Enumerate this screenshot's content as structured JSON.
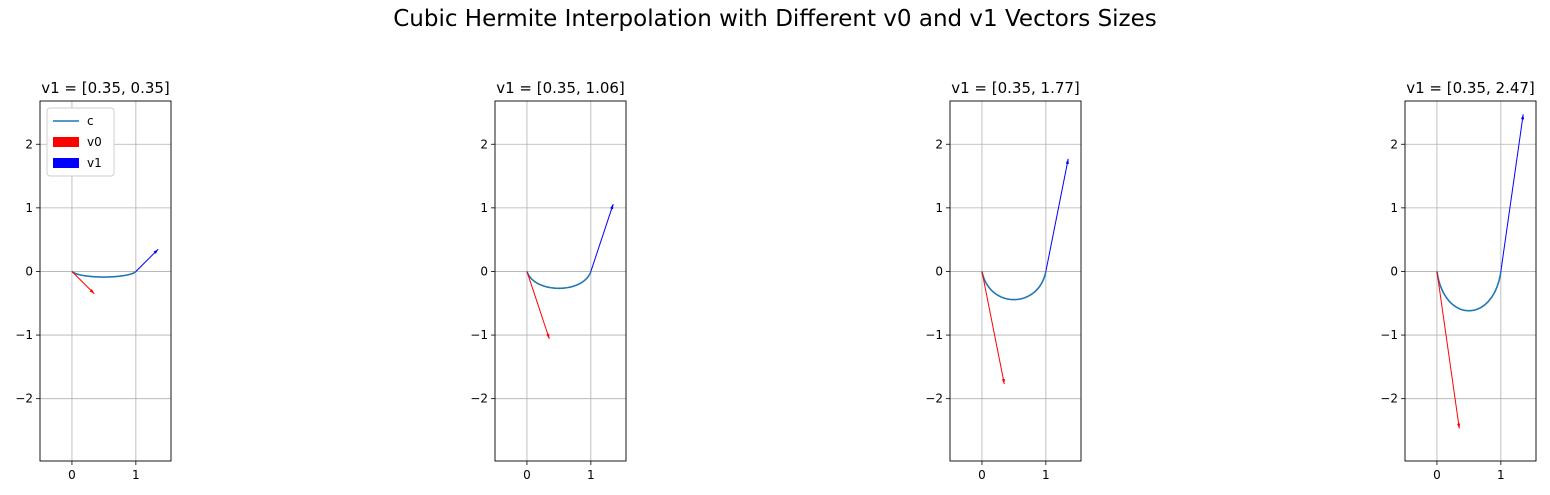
{
  "figure_title": "Cubic Hermite Interpolation with Different v0 and v1 Vectors Sizes",
  "colors": {
    "curve": "#1f77b4",
    "v0": "#ff0000",
    "v1": "#0000ff",
    "grid": "#b0b0b0",
    "axes": "#000000"
  },
  "legend": {
    "placement": "upper-left",
    "entries": [
      {
        "label": "c",
        "style": "line",
        "color": "#1f77b4"
      },
      {
        "label": "v0",
        "style": "patch",
        "color": "#ff0000"
      },
      {
        "label": "v1",
        "style": "patch",
        "color": "#0000ff"
      }
    ]
  },
  "chart_data": [
    {
      "type": "line",
      "title": "v1 = [0.35, 0.35]",
      "xlim": [
        -0.5,
        1.55
      ],
      "ylim": [
        -2.98,
        2.68
      ],
      "xticks": [
        0,
        1
      ],
      "yticks": [
        -2,
        -1,
        0,
        1,
        2
      ],
      "grid": true,
      "legend": true,
      "p0": [
        0,
        0
      ],
      "p1": [
        1,
        0
      ],
      "v0": [
        0.35,
        -0.35
      ],
      "v1": [
        0.35,
        0.35
      ],
      "series": [
        {
          "name": "c",
          "kind": "hermite-curve"
        }
      ]
    },
    {
      "type": "line",
      "title": "v1 = [0.35, 1.06]",
      "xlim": [
        -0.5,
        1.55
      ],
      "ylim": [
        -2.98,
        2.68
      ],
      "xticks": [
        0,
        1
      ],
      "yticks": [
        -2,
        -1,
        0,
        1,
        2
      ],
      "grid": true,
      "legend": false,
      "p0": [
        0,
        0
      ],
      "p1": [
        1,
        0
      ],
      "v0": [
        0.35,
        -1.06
      ],
      "v1": [
        0.35,
        1.06
      ],
      "series": [
        {
          "name": "c",
          "kind": "hermite-curve"
        }
      ]
    },
    {
      "type": "line",
      "title": "v1 = [0.35, 1.77]",
      "xlim": [
        -0.5,
        1.55
      ],
      "ylim": [
        -2.98,
        2.68
      ],
      "xticks": [
        0,
        1
      ],
      "yticks": [
        -2,
        -1,
        0,
        1,
        2
      ],
      "grid": true,
      "legend": false,
      "p0": [
        0,
        0
      ],
      "p1": [
        1,
        0
      ],
      "v0": [
        0.35,
        -1.77
      ],
      "v1": [
        0.35,
        1.77
      ],
      "series": [
        {
          "name": "c",
          "kind": "hermite-curve"
        }
      ]
    },
    {
      "type": "line",
      "title": "v1 = [0.35, 2.47]",
      "xlim": [
        -0.5,
        1.55
      ],
      "ylim": [
        -2.98,
        2.68
      ],
      "xticks": [
        0,
        1
      ],
      "yticks": [
        -2,
        -1,
        0,
        1,
        2
      ],
      "grid": true,
      "legend": false,
      "p0": [
        0,
        0
      ],
      "p1": [
        1,
        0
      ],
      "v0": [
        0.35,
        -2.47
      ],
      "v1": [
        0.35,
        2.47
      ],
      "series": [
        {
          "name": "c",
          "kind": "hermite-curve"
        }
      ]
    }
  ]
}
